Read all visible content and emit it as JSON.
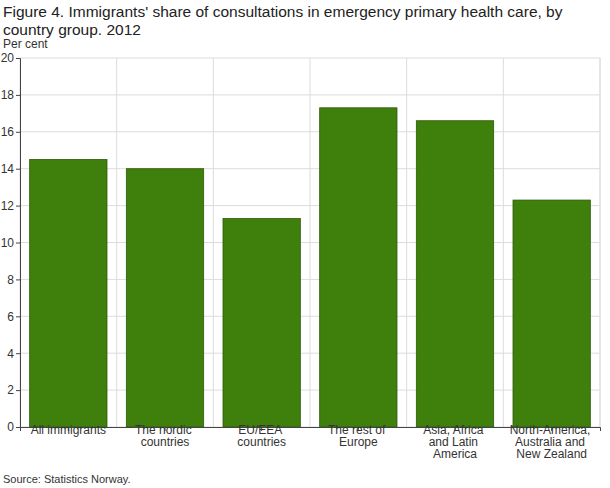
{
  "chart_data": {
    "type": "bar",
    "title": "Figure 4. Immigrants' share of consultations in emergency primary health care, by country group. 2012",
    "y_label": "Per cent",
    "source": "Source: Statistics Norway.",
    "categories": [
      "All immigrants",
      "The nordic countries",
      "EU/EEA countries",
      "The rest of Europe",
      "Asia, Africa and Latin America",
      "North-America, Australia and New Zealand"
    ],
    "values": [
      14.5,
      14.0,
      11.3,
      17.3,
      16.6,
      12.3
    ],
    "color": "#3f7f0c",
    "ylim": [
      0,
      20
    ],
    "yticks": [
      0,
      2,
      4,
      6,
      8,
      10,
      12,
      14,
      16,
      18,
      20
    ],
    "grid": true
  }
}
